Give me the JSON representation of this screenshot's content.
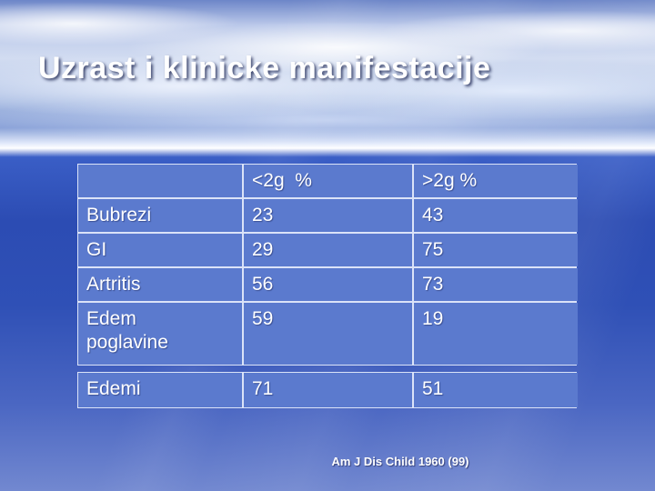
{
  "slide": {
    "title": "Uzrast i klinicke manifestacije",
    "citation": "Am J Dis Child 1960 (99)"
  },
  "colors": {
    "cell_background": "#5b7ace",
    "slide_body_blue": "#2c4cb3",
    "text": "#ffffff"
  },
  "table": {
    "headers": [
      "",
      "<2g  %",
      ">2g %"
    ],
    "rows": [
      {
        "label": "Bubrezi",
        "lt2g": "23",
        "gt2g": "43"
      },
      {
        "label": "GI",
        "lt2g": "29",
        "gt2g": "75"
      },
      {
        "label": "Artritis",
        "lt2g": "56",
        "gt2g": "73"
      },
      {
        "label": "Edem\npoglavine",
        "lt2g": "59",
        "gt2g": "19"
      },
      {
        "label": "Edemi",
        "lt2g": "71",
        "gt2g": "51"
      }
    ]
  }
}
